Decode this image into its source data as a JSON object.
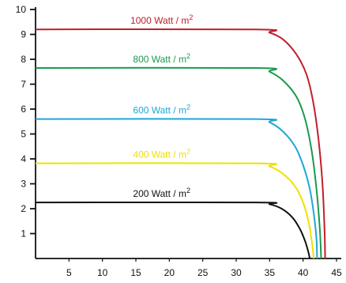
{
  "chart_data": {
    "type": "line",
    "title": "",
    "xlabel": "",
    "ylabel": "",
    "xlim": [
      0,
      45
    ],
    "ylim": [
      0,
      10
    ],
    "grid": false,
    "x_ticks": [
      5,
      10,
      15,
      20,
      25,
      30,
      35,
      40,
      45
    ],
    "y_ticks": [
      1,
      2,
      3,
      4,
      5,
      6,
      7,
      8,
      9,
      10
    ],
    "series": [
      {
        "name": "1000 Watt / m2",
        "label_text": "1000 Watt / m",
        "label_sup": "2",
        "color": "#c0202a",
        "x": [
          0,
          33,
          35,
          37,
          39,
          40.5,
          41.5,
          42.3,
          42.9,
          43.2,
          43.3
        ],
        "y": [
          9.2,
          9.2,
          9.07,
          8.8,
          8.2,
          7.4,
          6.3,
          4.8,
          3.0,
          1.2,
          0
        ]
      },
      {
        "name": "800 Watt / m2",
        "label_text": "800 Watt / m",
        "label_sup": "2",
        "color": "#1a9a4e",
        "x": [
          0,
          33,
          35,
          37,
          39,
          40.3,
          41.3,
          42.0,
          42.5,
          42.7
        ],
        "y": [
          7.65,
          7.65,
          7.5,
          7.15,
          6.5,
          5.6,
          4.3,
          2.8,
          1.2,
          0
        ]
      },
      {
        "name": "600 Watt / m2",
        "label_text": "600 Watt / m",
        "label_sup": "2",
        "color": "#1fa7d6",
        "x": [
          0,
          33,
          35,
          37,
          38.8,
          40.0,
          41.0,
          41.6,
          42.0,
          42.1
        ],
        "y": [
          5.6,
          5.6,
          5.47,
          5.1,
          4.5,
          3.75,
          2.8,
          1.8,
          0.8,
          0
        ]
      },
      {
        "name": "400 Watt / m2",
        "label_text": "400 Watt / m",
        "label_sup": "2",
        "color": "#f0e000",
        "x": [
          0,
          33,
          35,
          37,
          38.8,
          40.0,
          40.8,
          41.3,
          41.6
        ],
        "y": [
          3.82,
          3.82,
          3.7,
          3.4,
          2.9,
          2.25,
          1.5,
          0.7,
          0
        ]
      },
      {
        "name": "200 Watt / m2",
        "label_text": "200 Watt / m",
        "label_sup": "2",
        "color": "#111111",
        "x": [
          0,
          33,
          35,
          36.8,
          38.4,
          39.5,
          40.3,
          40.8,
          41.0
        ],
        "y": [
          2.25,
          2.25,
          2.18,
          2.0,
          1.65,
          1.2,
          0.7,
          0.25,
          0
        ]
      }
    ]
  }
}
